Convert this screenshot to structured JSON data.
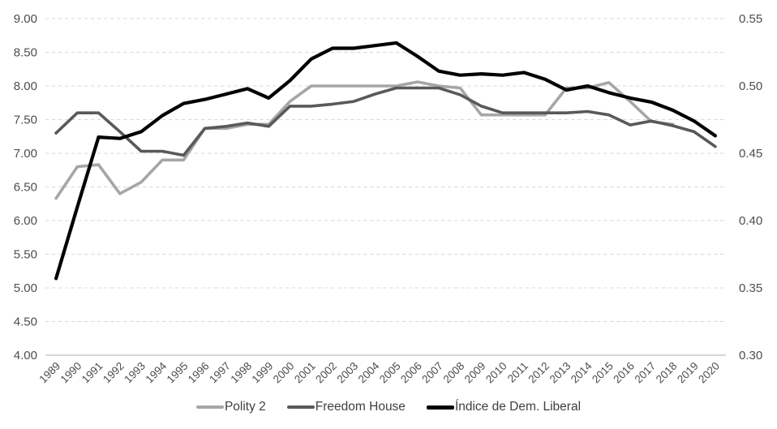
{
  "chart_data": {
    "type": "line",
    "title": "",
    "xlabel": "",
    "ylabel": "",
    "grid": "horizontal-dashed",
    "legend_position": "bottom-center",
    "x": [
      1989,
      1990,
      1991,
      1992,
      1993,
      1994,
      1995,
      1996,
      1997,
      1998,
      1999,
      2000,
      2001,
      2002,
      2003,
      2004,
      2005,
      2006,
      2007,
      2008,
      2009,
      2010,
      2011,
      2012,
      2013,
      2014,
      2015,
      2016,
      2017,
      2018,
      2019,
      2020
    ],
    "left_axis": {
      "range": [
        4.0,
        9.0
      ],
      "tick_step": 0.5,
      "ticks": [
        "9.00",
        "8.50",
        "8.00",
        "7.50",
        "7.00",
        "6.50",
        "6.00",
        "5.50",
        "5.00",
        "4.50",
        "4.00"
      ]
    },
    "right_axis": {
      "range": [
        0.3,
        0.55
      ],
      "tick_step": 0.05,
      "ticks": [
        "0.55",
        "0.50",
        "0.45",
        "0.40",
        "0.35",
        "0.30"
      ]
    },
    "series": [
      {
        "name": "Polity 2",
        "axis": "left",
        "color": "#a6a6a6",
        "values": [
          6.33,
          6.8,
          6.83,
          6.4,
          6.57,
          6.9,
          6.9,
          7.37,
          7.37,
          7.43,
          7.43,
          7.77,
          8.0,
          8.0,
          8.0,
          8.0,
          8.0,
          8.06,
          8.0,
          7.97,
          7.57,
          7.57,
          7.57,
          7.57,
          7.97,
          7.97,
          8.05,
          7.77,
          7.47,
          7.43,
          null,
          null
        ]
      },
      {
        "name": "Freedom House",
        "axis": "left",
        "color": "#595959",
        "values": [
          7.3,
          7.6,
          7.6,
          7.32,
          7.03,
          7.03,
          6.97,
          7.37,
          7.4,
          7.45,
          7.4,
          7.7,
          7.7,
          7.73,
          7.77,
          7.88,
          7.97,
          7.97,
          7.97,
          7.87,
          7.7,
          7.6,
          7.6,
          7.6,
          7.6,
          7.62,
          7.57,
          7.42,
          7.48,
          7.41,
          7.32,
          7.1
        ]
      },
      {
        "name": "Índice de Dem. Liberal",
        "axis": "right",
        "color": "#000000",
        "values": [
          0.357,
          0.41,
          0.462,
          0.461,
          0.466,
          0.478,
          0.487,
          0.49,
          0.494,
          0.498,
          0.491,
          0.504,
          0.52,
          0.528,
          0.528,
          0.53,
          0.532,
          0.522,
          0.511,
          0.508,
          0.509,
          0.508,
          0.51,
          0.505,
          0.497,
          0.5,
          0.495,
          0.491,
          0.488,
          0.482,
          0.474,
          0.463
        ]
      }
    ]
  },
  "colors": {
    "gridline": "#d9d9d9",
    "axis_line": "#bfbfbf",
    "axis_text": "#4d4d4d"
  }
}
